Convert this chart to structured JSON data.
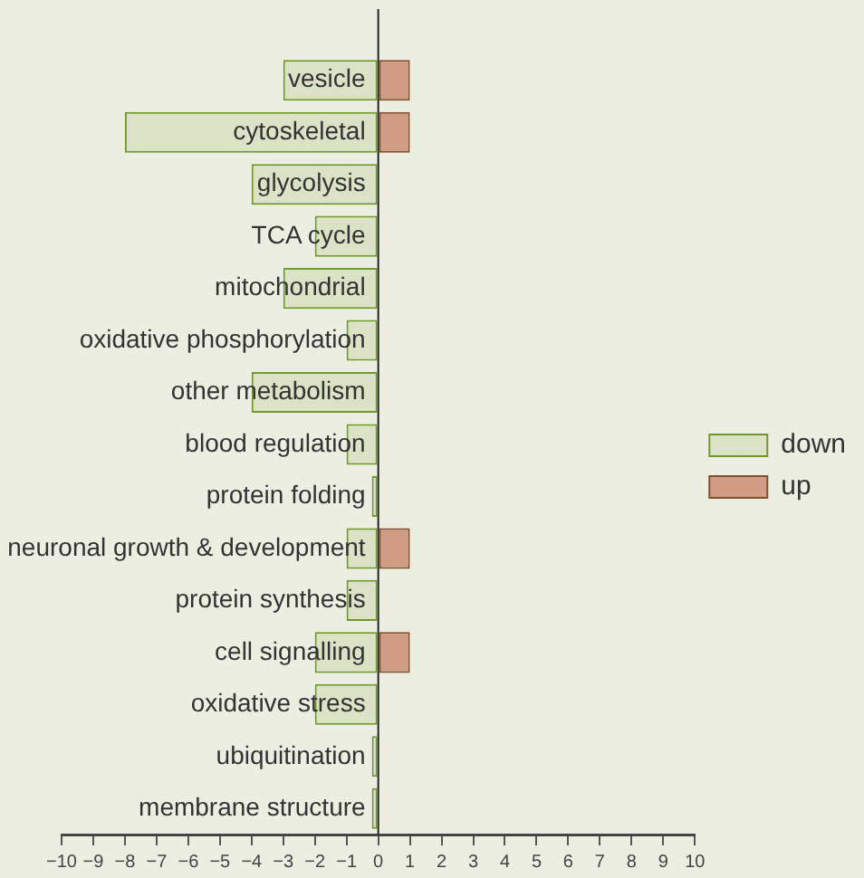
{
  "chart_data": {
    "type": "bar",
    "orientation": "horizontal",
    "categories": [
      "vesicle",
      "cytoskeletal",
      "glycolysis",
      "TCA cycle",
      "mitochondrial",
      "oxidative phosphorylation",
      "other metabolism",
      "blood regulation",
      "protein folding",
      "neuronal growth & development",
      "protein synthesis",
      "cell signalling",
      "oxidative stress",
      "ubiquitination",
      "membrane structure"
    ],
    "series": [
      {
        "name": "down",
        "color": "#dbe2c6",
        "values": [
          -3,
          -8,
          -4,
          -2,
          -3,
          -1,
          -4,
          -1,
          -0.2,
          -1,
          -1,
          -2,
          -2,
          -0.2,
          -0.2
        ]
      },
      {
        "name": "up",
        "color": "#d19c84",
        "values": [
          1,
          1,
          null,
          null,
          null,
          null,
          null,
          null,
          null,
          1,
          null,
          1,
          null,
          null,
          null
        ]
      }
    ],
    "xlim": [
      -10,
      10
    ],
    "xticks": [
      {
        "value": -10,
        "label": "−10"
      },
      {
        "value": -9,
        "label": "−9"
      },
      {
        "value": -8,
        "label": "−8"
      },
      {
        "value": -7,
        "label": "−7"
      },
      {
        "value": -6,
        "label": "−6"
      },
      {
        "value": -5,
        "label": "−5"
      },
      {
        "value": -4,
        "label": "−4"
      },
      {
        "value": -3,
        "label": "−3"
      },
      {
        "value": -2,
        "label": "−2"
      },
      {
        "value": -1,
        "label": "−1"
      },
      0,
      1,
      2,
      3,
      4,
      5,
      6,
      7,
      8,
      9,
      10
    ],
    "grid": false,
    "legend": "right"
  }
}
